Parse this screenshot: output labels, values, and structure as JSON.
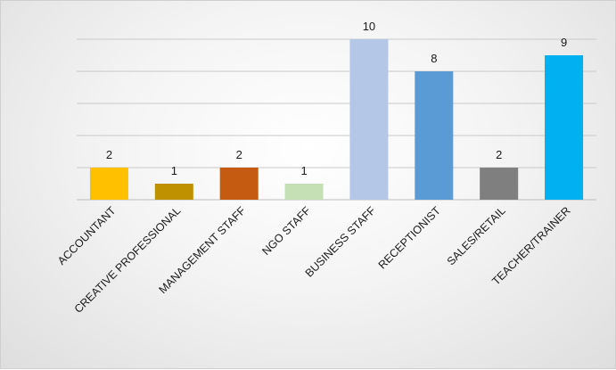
{
  "chart_data": {
    "type": "bar",
    "categories": [
      "ACCOUNTANT",
      "CREATIVE PROFESSIONAL",
      "MANAGEMENT STAFF",
      "NGO STAFF",
      "BUSINESS STAFF",
      "RECEPTIONIST",
      "SALES/RETAIL",
      "TEACHER/TRAINER"
    ],
    "values": [
      2,
      1,
      2,
      1,
      10,
      8,
      2,
      9
    ],
    "colors": [
      "#ffc000",
      "#bf9000",
      "#c55a11",
      "#c5e0b4",
      "#b4c7e7",
      "#5b9bd5",
      "#7f7f7f",
      "#00b0f0"
    ],
    "ylim": [
      0,
      10
    ],
    "ytick_step": 2,
    "grid": true,
    "show_y_tick_labels": false,
    "data_labels": true,
    "legend": "none"
  }
}
